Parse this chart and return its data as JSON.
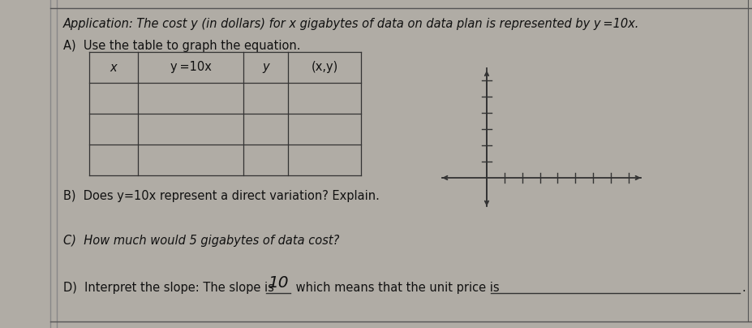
{
  "bg_color": "#b0aca5",
  "paper_color": "#e8e4dc",
  "title_text": "Application: The cost y (in dollars) for x gigabytes of data on data plan is represented by y =10x.",
  "A_text": "A)  Use the table to graph the equation.",
  "table_headers": [
    "x",
    "y =10x",
    "y",
    "(x,y)"
  ],
  "B_text": "B)  Does y=10x represent a direct variation? Explain.",
  "C_text": "C)  How much would 5 gigabytes of data cost?",
  "D_text": "D)  Interpret the slope: The slope is ",
  "D_filled": "10",
  "D_suffix": " which means that the unit price is",
  "axis_color": "#333333",
  "text_color": "#111111",
  "font_size_title": 10.5,
  "font_size_body": 10.5
}
